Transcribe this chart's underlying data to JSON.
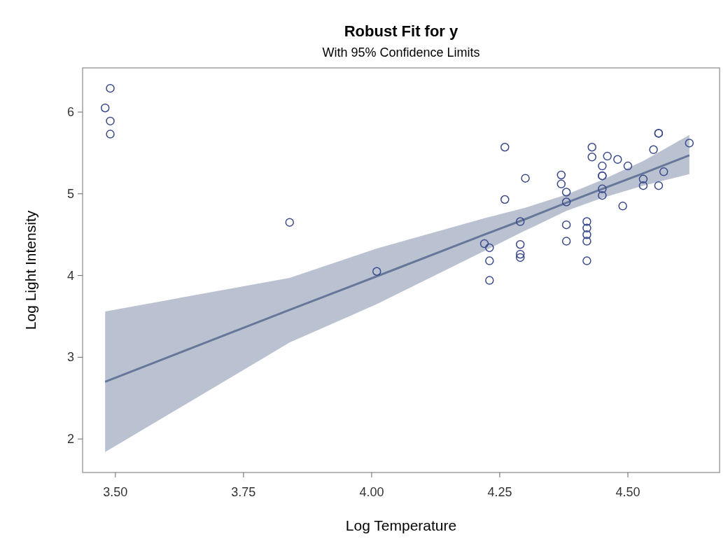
{
  "chart_data": {
    "type": "scatter",
    "title": "Robust Fit for y",
    "subtitle": "With 95% Confidence Limits",
    "xlabel": "Log Temperature",
    "ylabel": "Log Light Intensity",
    "xlim": [
      3.436,
      4.679
    ],
    "xticks": [
      {
        "value": 3.5,
        "label": "3.50"
      },
      {
        "value": 3.75,
        "label": "3.75"
      },
      {
        "value": 4,
        "label": "4.00"
      },
      {
        "value": 4.25,
        "label": "4.25"
      },
      {
        "value": 4.5,
        "label": "4.50"
      }
    ],
    "ylim": [
      1.59,
      6.54
    ],
    "yticks": [
      2,
      3,
      4,
      5,
      6
    ],
    "grid": false,
    "series": [
      {
        "type": "line",
        "color": "#667799",
        "line_style": "solid",
        "x": [
          3.48,
          3.84,
          4.01,
          4.22,
          4.3,
          4.38,
          4.45,
          4.53,
          4.62
        ],
        "values": [
          2.7,
          3.58,
          3.99,
          4.5,
          4.69,
          4.89,
          5.06,
          5.25,
          5.47
        ],
        "lower": [
          1.84,
          3.18,
          3.65,
          4.3,
          4.55,
          4.79,
          4.95,
          5.1,
          5.24
        ],
        "upper": [
          3.56,
          3.97,
          4.33,
          4.7,
          4.83,
          4.99,
          5.17,
          5.4,
          5.72
        ]
      },
      {
        "color": "#3b4a8c",
        "marker": "circle",
        "x": [
          4.37,
          4.56,
          4.26,
          4.56,
          4.3,
          4.46,
          3.84,
          4.57,
          4.26,
          4.37,
          3.49,
          4.43,
          4.48,
          4.01,
          4.29,
          4.42,
          4.23,
          4.42,
          4.23,
          3.49,
          4.29,
          4.29,
          4.42,
          4.49,
          4.38,
          4.42,
          4.29,
          4.38,
          4.22,
          3.48,
          4.38,
          4.56,
          4.45,
          3.49,
          4.23,
          4.62,
          4.53,
          4.45,
          4.53,
          4.43,
          4.38,
          4.45,
          4.5,
          4.45,
          4.55,
          4.45,
          4.42
        ],
        "values": [
          5.23,
          5.74,
          4.93,
          5.74,
          5.19,
          5.46,
          4.65,
          5.27,
          5.57,
          5.12,
          5.73,
          5.45,
          5.42,
          4.05,
          4.26,
          4.58,
          3.94,
          4.18,
          4.18,
          5.89,
          4.38,
          4.22,
          4.42,
          4.85,
          5.02,
          4.66,
          4.66,
          4.9,
          4.39,
          6.05,
          4.42,
          5.1,
          5.22,
          6.29,
          4.34,
          5.62,
          5.1,
          5.22,
          5.18,
          5.57,
          4.62,
          5.06,
          5.34,
          5.34,
          5.54,
          4.98,
          4.5
        ]
      }
    ]
  }
}
